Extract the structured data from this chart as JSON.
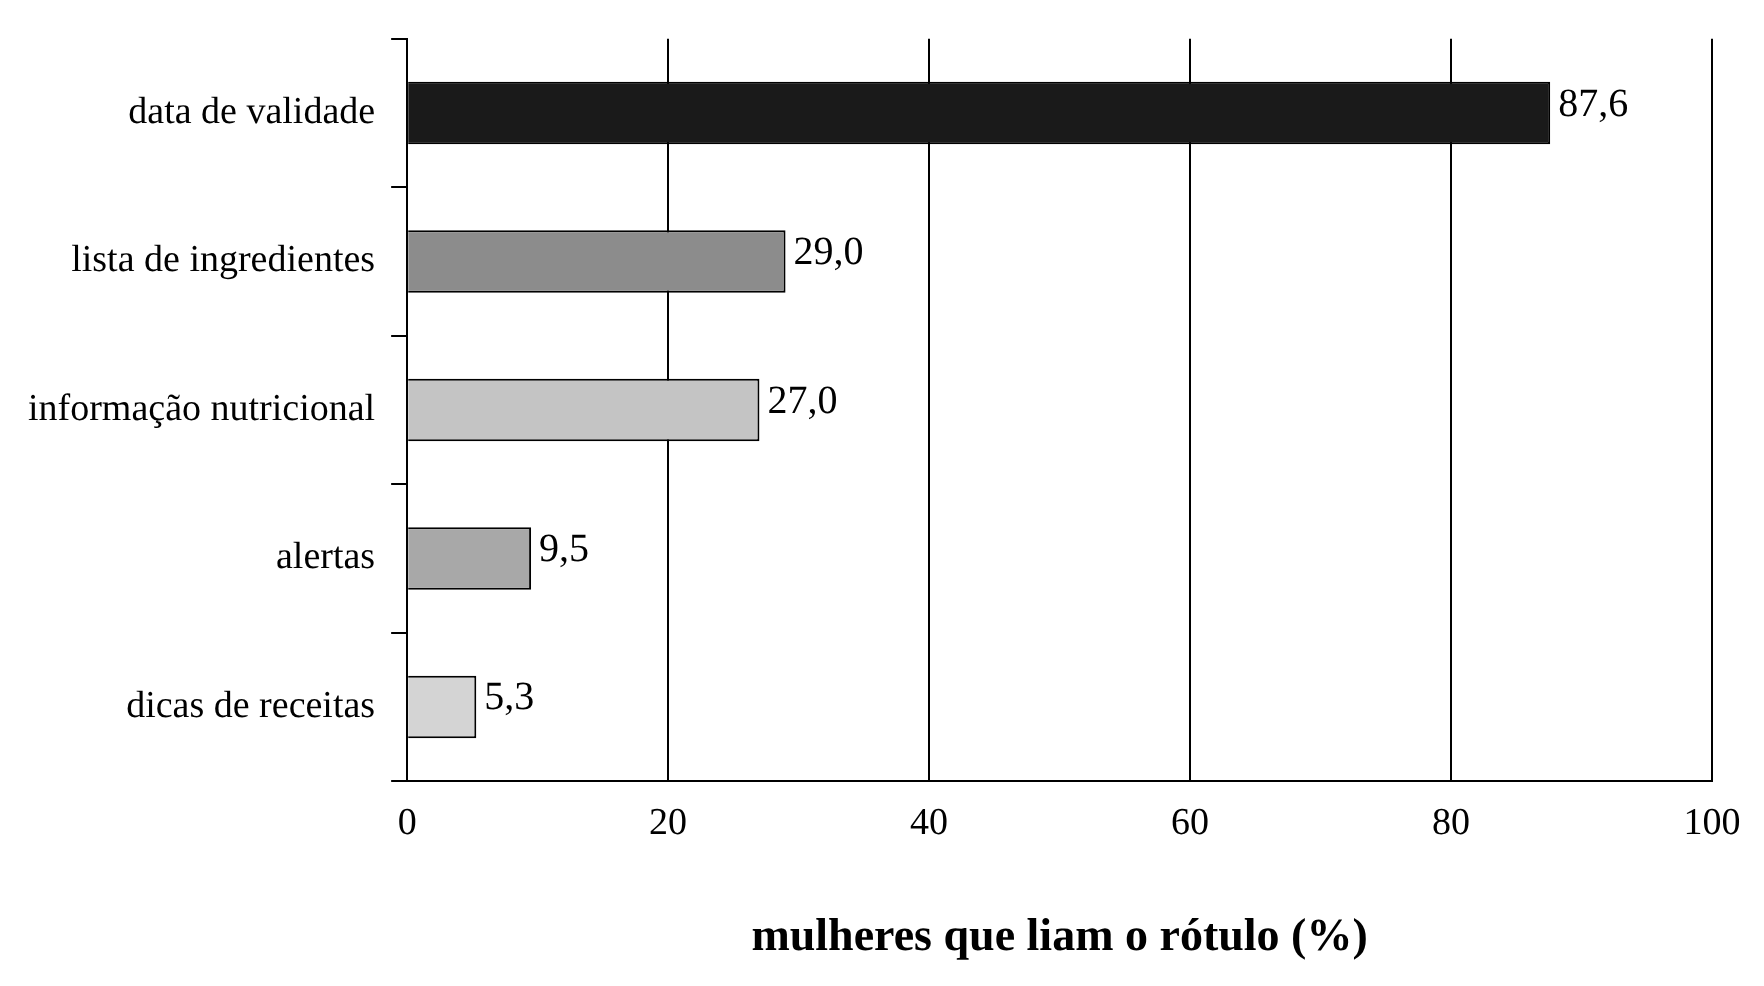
{
  "chart_data": {
    "type": "bar",
    "orientation": "horizontal",
    "xlabel": "mulheres que liam o rótulo (%)",
    "categories": [
      "data de validade",
      "lista de ingredientes",
      "informação nutricional",
      "alertas",
      "dicas de receitas"
    ],
    "values": [
      87.6,
      29.0,
      27.0,
      9.5,
      5.3
    ],
    "value_labels": [
      "87,6",
      "29,0",
      "27,0",
      "9,5",
      "5,3"
    ],
    "colors": [
      "#1a1a1a",
      "#8c8c8c",
      "#c4c4c4",
      "#a8a8a8",
      "#d4d4d4"
    ],
    "xlim": [
      0,
      100
    ],
    "xticks": [
      0,
      20,
      40,
      60,
      80,
      100
    ],
    "grid": "x",
    "legend": false
  }
}
